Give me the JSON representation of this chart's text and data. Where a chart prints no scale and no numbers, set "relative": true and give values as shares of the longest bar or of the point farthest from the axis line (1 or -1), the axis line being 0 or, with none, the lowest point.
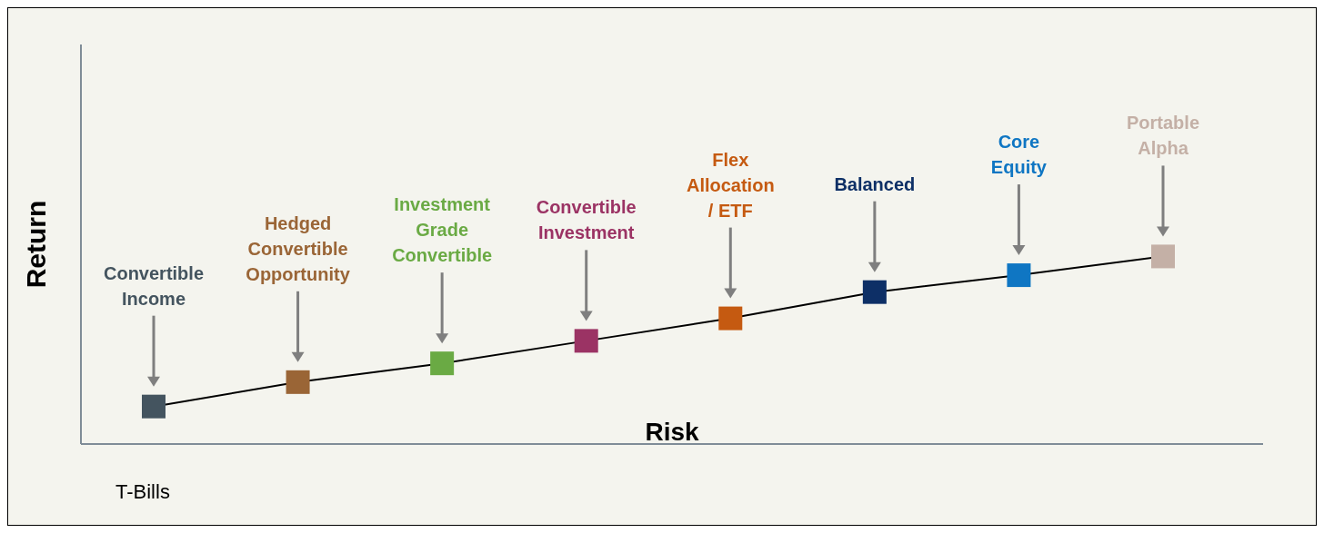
{
  "chart_data": {
    "type": "line",
    "relative": true,
    "xlabel": "Risk",
    "ylabel": "Return",
    "marker": "square",
    "line_style": "solid",
    "categories": [
      null,
      null,
      null,
      null,
      null,
      null,
      null,
      null
    ],
    "series": [
      {
        "color": "#000000",
        "colors": [
          "#44545f",
          "#9a6536",
          "#6aaa44",
          "#9b3364",
          "#c55a11",
          "#0d2f66",
          "#0f76c3",
          "#c4b0a6"
        ],
        "values": [
          0.2,
          0.33,
          0.43,
          0.55,
          0.67,
          0.81,
          0.9,
          1
        ]
      }
    ],
    "annotations": [
      "Convertible Income",
      "Hedged Convertible Opportunity",
      "Investment Grade Convertible",
      "Convertible Investment",
      "Flex Allocation / ETF",
      "Balanced",
      "Core Equity",
      "Portable Alpha",
      "T-Bills"
    ]
  }
}
